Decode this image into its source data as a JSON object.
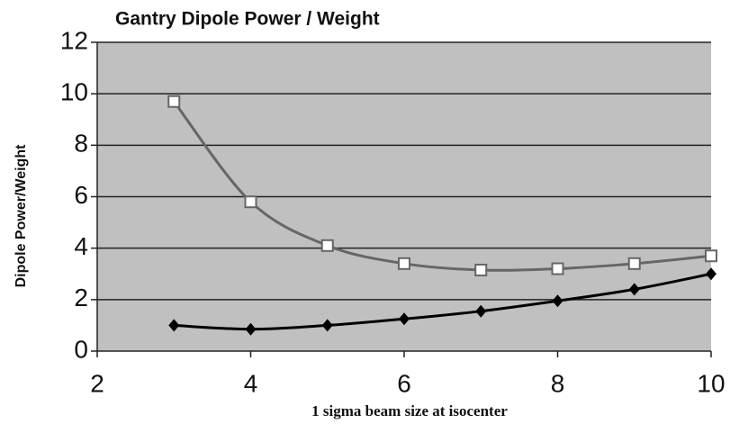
{
  "chart_data": {
    "type": "line",
    "title": "Gantry Dipole Power / Weight",
    "x_label": "1 sigma beam size at isocenter",
    "y_label": "Dipole Power/Weight",
    "x": [
      3,
      4,
      5,
      6,
      7,
      8,
      9,
      10
    ],
    "series": [
      {
        "color": "#666666",
        "marker": "square",
        "values": [
          9.7,
          5.8,
          4.1,
          3.4,
          3.15,
          3.2,
          3.4,
          3.7
        ]
      },
      {
        "color": "#000000",
        "marker": "diamond",
        "values": [
          1.0,
          0.85,
          1.0,
          1.25,
          1.55,
          1.95,
          2.4,
          3.0
        ]
      }
    ],
    "xlim": [
      2,
      10
    ],
    "xticks": [
      2,
      4,
      6,
      8,
      10
    ],
    "ylim": [
      0,
      12
    ],
    "yticks": [
      0,
      2,
      4,
      6,
      8,
      10,
      12
    ],
    "grid": true,
    "smooth": true
  }
}
